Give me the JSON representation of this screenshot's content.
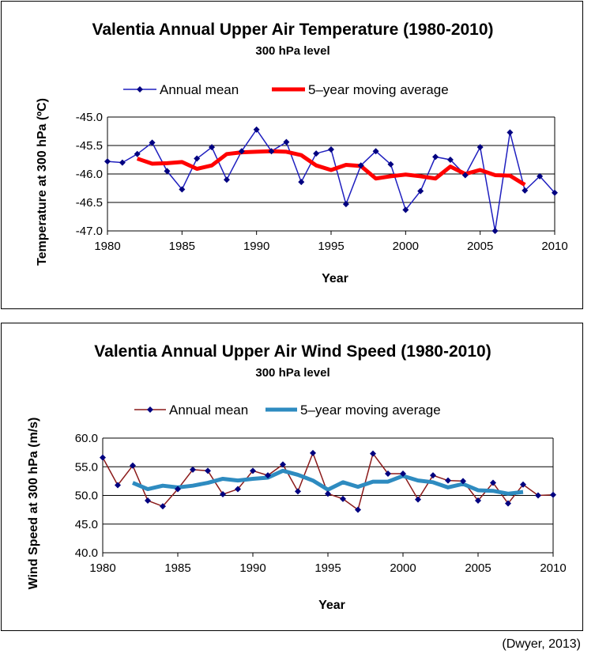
{
  "chart_data": [
    {
      "type": "line",
      "title": "Valentia Annual Upper Air Temperature (1980-2010)",
      "subtitle": "300 hPa level",
      "xlabel": "Year",
      "ylabel": "Temperature at 300 hPa (ºC)",
      "xlim": [
        1980,
        2010
      ],
      "ylim": [
        -47.0,
        -45.0
      ],
      "xticks": [
        1980,
        1985,
        1990,
        1995,
        2000,
        2005,
        2010
      ],
      "yticks": [
        -45.0,
        -45.5,
        -46.0,
        -46.5,
        -47.0
      ],
      "ytick_labels": [
        "-45.0",
        "-45.5",
        "-46.0",
        "-46.5",
        "-47.0"
      ],
      "grid": "horizontal",
      "legend": "top",
      "series": [
        {
          "name": "Annual mean",
          "color": "#1f1fbf",
          "marker": "diamond",
          "marker_color": "#000080",
          "x": [
            1980,
            1981,
            1982,
            1983,
            1984,
            1985,
            1986,
            1987,
            1988,
            1989,
            1990,
            1991,
            1992,
            1993,
            1994,
            1995,
            1996,
            1997,
            1998,
            1999,
            2000,
            2001,
            2002,
            2003,
            2004,
            2005,
            2006,
            2007,
            2008,
            2009,
            2010
          ],
          "y": [
            -45.78,
            -45.8,
            -45.65,
            -45.45,
            -45.95,
            -46.27,
            -45.73,
            -45.53,
            -46.1,
            -45.6,
            -45.22,
            -45.6,
            -45.44,
            -46.14,
            -45.64,
            -45.57,
            -46.53,
            -45.85,
            -45.6,
            -45.83,
            -46.63,
            -46.3,
            -45.7,
            -45.75,
            -46.02,
            -45.53,
            -47.0,
            -45.27,
            -46.29,
            -46.04,
            -46.33
          ]
        },
        {
          "name": "5–year moving average",
          "color": "#ff0000",
          "x": [
            1982,
            1983,
            1984,
            1985,
            1986,
            1987,
            1988,
            1989,
            1990,
            1991,
            1992,
            1993,
            1994,
            1995,
            1996,
            1997,
            1998,
            1999,
            2000,
            2001,
            2002,
            2003,
            2004,
            2005,
            2006,
            2007,
            2008
          ],
          "y": [
            -45.73,
            -45.82,
            -45.81,
            -45.79,
            -45.91,
            -45.85,
            -45.65,
            -45.62,
            -45.61,
            -45.6,
            -45.61,
            -45.67,
            -45.85,
            -45.93,
            -45.84,
            -45.86,
            -46.08,
            -46.04,
            -46.01,
            -46.04,
            -46.08,
            -45.87,
            -46.0,
            -45.93,
            -46.02,
            -46.03,
            -46.19
          ]
        }
      ]
    },
    {
      "type": "line",
      "title": "Valentia Annual Upper Air Wind Speed (1980-2010)",
      "subtitle": "300 hPa level",
      "xlabel": "Year",
      "ylabel": "Wind Speed at 300 hPa (m/s)",
      "xlim": [
        1980,
        2010
      ],
      "ylim": [
        40.0,
        60.0
      ],
      "xticks": [
        1980,
        1985,
        1990,
        1995,
        2000,
        2005,
        2010
      ],
      "yticks": [
        60.0,
        55.0,
        50.0,
        45.0,
        40.0
      ],
      "ytick_labels": [
        "60.0",
        "55.0",
        "50.0",
        "45.0",
        "40.0"
      ],
      "grid": "horizontal",
      "legend": "top",
      "series": [
        {
          "name": "Annual mean",
          "color": "#8b1a1a",
          "marker": "diamond",
          "marker_color": "#000080",
          "x": [
            1980,
            1981,
            1982,
            1983,
            1984,
            1985,
            1986,
            1987,
            1988,
            1989,
            1990,
            1991,
            1992,
            1993,
            1994,
            1995,
            1996,
            1997,
            1998,
            1999,
            2000,
            2001,
            2002,
            2003,
            2004,
            2005,
            2006,
            2007,
            2008,
            2009,
            2010
          ],
          "y": [
            56.6,
            51.8,
            55.2,
            49.1,
            48.1,
            51.1,
            54.5,
            54.3,
            50.2,
            51.1,
            54.3,
            53.5,
            55.4,
            50.7,
            57.4,
            50.3,
            49.4,
            47.5,
            57.3,
            53.8,
            53.8,
            49.3,
            53.5,
            52.6,
            52.5,
            49.1,
            52.2,
            48.6,
            51.9,
            50.0,
            50.1
          ]
        },
        {
          "name": "5–year moving average",
          "color": "#2e8bc0",
          "x": [
            1982,
            1983,
            1984,
            1985,
            1986,
            1987,
            1988,
            1989,
            1990,
            1991,
            1992,
            1993,
            1994,
            1995,
            1996,
            1997,
            1998,
            1999,
            2000,
            2001,
            2002,
            2003,
            2004,
            2005,
            2006,
            2007,
            2008
          ],
          "y": [
            52.2,
            51.1,
            51.7,
            51.4,
            51.7,
            52.2,
            52.9,
            52.6,
            52.9,
            53.1,
            54.3,
            53.6,
            52.6,
            51.0,
            52.3,
            51.5,
            52.4,
            52.4,
            53.4,
            52.6,
            52.3,
            51.4,
            52.0,
            50.9,
            50.8,
            50.3,
            50.6
          ]
        }
      ]
    }
  ],
  "credit": "(Dwyer, 2013)"
}
